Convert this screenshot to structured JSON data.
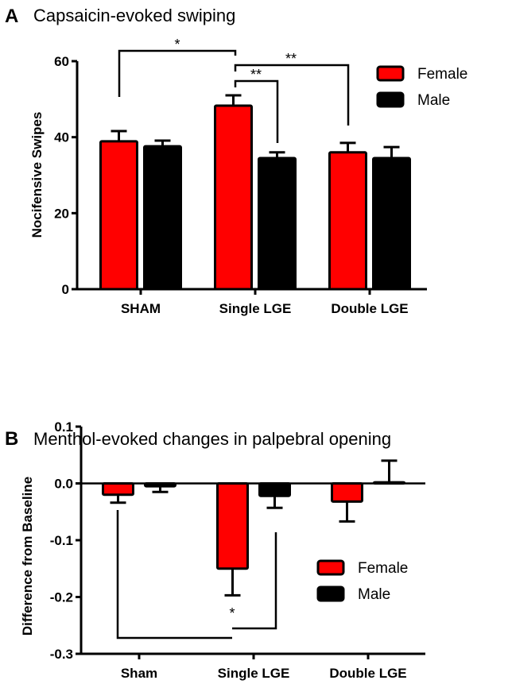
{
  "chart_data": [
    {
      "type": "bar",
      "panel_label": "A",
      "title": "Capsaicin-evoked swiping",
      "xlabel": "",
      "ylabel": "Nocifensive Swipes",
      "ylim": [
        0,
        60
      ],
      "yticks": [
        "0",
        "20",
        "40",
        "60"
      ],
      "ytick_values": [
        0,
        20,
        40,
        60
      ],
      "categories": [
        "SHAM",
        "Single LGE",
        "Double LGE"
      ],
      "series": [
        {
          "name": "Female",
          "color": "#ff0000",
          "values": [
            38.9,
            48.3,
            36.0
          ],
          "error": [
            2.7,
            2.7,
            2.5
          ]
        },
        {
          "name": "Male",
          "color": "#000000",
          "values": [
            37.6,
            34.5,
            34.5
          ],
          "error": [
            1.5,
            1.5,
            2.9
          ]
        }
      ],
      "legend_position": "top-right",
      "annotations": [
        {
          "text": "*",
          "from": "SHAM Female",
          "to": "Single LGE Female"
        },
        {
          "text": "**",
          "from": "Single LGE Female",
          "to": "Single LGE Male"
        },
        {
          "text": "**",
          "from": "Single LGE Female",
          "to": "Double LGE Female"
        }
      ]
    },
    {
      "type": "bar",
      "panel_label": "B",
      "title": "Menthol-evoked changes in palpebral opening",
      "xlabel": "",
      "ylabel": "Difference from Baseline",
      "ylim": [
        -0.3,
        0.1
      ],
      "yticks": [
        "0.1",
        "0.0",
        "-0.1",
        "-0.2",
        "-0.3"
      ],
      "ytick_values": [
        0.1,
        0.0,
        -0.1,
        -0.2,
        -0.3
      ],
      "categories": [
        "Sham",
        "Single LGE",
        "Double LGE"
      ],
      "series": [
        {
          "name": "Female",
          "color": "#ff0000",
          "values": [
            -0.02,
            -0.15,
            -0.032
          ],
          "error": [
            0.014,
            0.047,
            0.035
          ]
        },
        {
          "name": "Male",
          "color": "#000000",
          "values": [
            -0.005,
            -0.022,
            0.002
          ],
          "error": [
            0.01,
            0.021,
            0.038
          ]
        }
      ],
      "legend_position": "center-right",
      "annotations": [
        {
          "text": "*",
          "from": "Sham Female",
          "to": "Single LGE Male"
        }
      ]
    }
  ]
}
